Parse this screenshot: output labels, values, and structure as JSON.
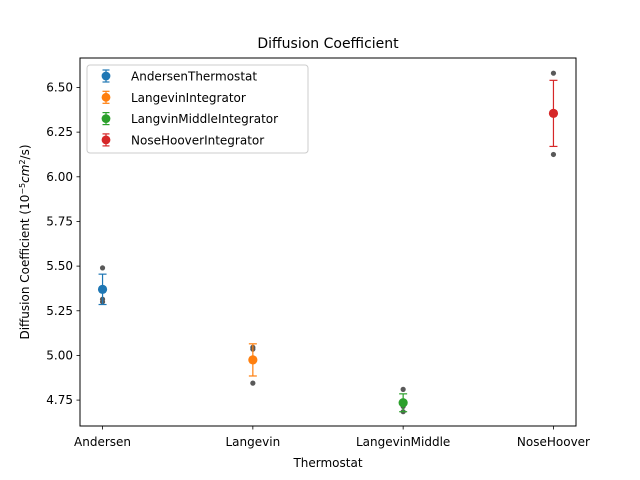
{
  "chart_data": {
    "type": "scatter",
    "title": "Diffusion Coefficient",
    "xlabel": "Thermostat",
    "ylabel_prefix": "Diffusion Coefficient (10",
    "ylabel_exp_minus": "−5",
    "ylabel_unit_a": "cm",
    "ylabel_exp_two": "2",
    "ylabel_unit_b": "/s)",
    "categories": [
      "Andersen",
      "Langevin",
      "LangevinMiddle",
      "NoseHoover"
    ],
    "yticks": [
      4.75,
      5.0,
      5.25,
      5.5,
      5.75,
      6.0,
      6.25,
      6.5
    ],
    "ytick_labels": [
      "4.75",
      "5.00",
      "5.25",
      "5.50",
      "5.75",
      "6.00",
      "6.25",
      "6.50"
    ],
    "xlim": [
      -0.15,
      3.15
    ],
    "ylim": [
      4.605,
      6.665
    ],
    "legend_position": "top-left",
    "series": [
      {
        "name": "AndersenThermostat",
        "color": "#1f77b4",
        "x": 0,
        "mean": 5.37,
        "err": 0.085,
        "samples": [
          5.49,
          5.315,
          5.3
        ]
      },
      {
        "name": "LangevinIntegrator",
        "color": "#ff7f0e",
        "x": 1,
        "mean": 4.975,
        "err": 0.09,
        "samples": [
          5.045,
          5.035,
          4.845
        ]
      },
      {
        "name": "LangvinMiddleIntegrator",
        "color": "#2ca02c",
        "x": 2,
        "mean": 4.735,
        "err": 0.05,
        "samples": [
          4.81,
          4.715,
          4.685
        ]
      },
      {
        "name": "NoseHooverIntegrator",
        "color": "#d62728",
        "x": 3,
        "mean": 6.355,
        "err": 0.185,
        "samples": [
          6.58,
          6.125
        ]
      }
    ],
    "sample_color": "#595959",
    "grid": false
  }
}
